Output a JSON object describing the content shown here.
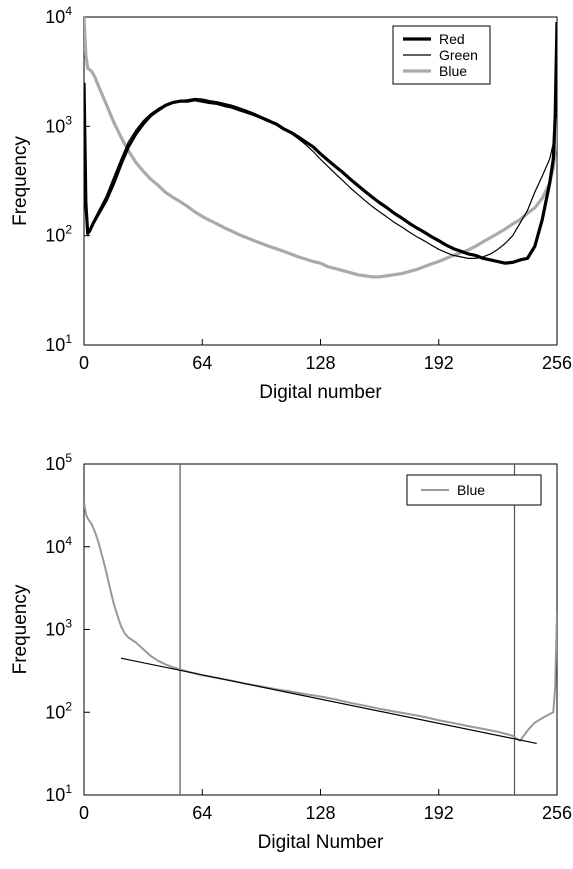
{
  "chart_data": [
    {
      "type": "line",
      "title": "",
      "xlabel": "Digital number",
      "ylabel": "Frequency",
      "xlim": [
        0,
        256
      ],
      "ylim_log10": [
        1,
        4
      ],
      "y_scale": "log",
      "x_ticks": [
        "0",
        "64",
        "128",
        "192",
        "256"
      ],
      "y_ticks": [
        {
          "base": "10",
          "exp": "1"
        },
        {
          "base": "10",
          "exp": "2"
        },
        {
          "base": "10",
          "exp": "3"
        },
        {
          "base": "10",
          "exp": "4"
        }
      ],
      "grid": false,
      "legend": "top-right",
      "series": [
        {
          "name": "Red",
          "color": "#000000",
          "style": "thick",
          "x": [
            0,
            1,
            2,
            3,
            5,
            8,
            12,
            16,
            20,
            24,
            28,
            32,
            36,
            40,
            44,
            48,
            52,
            56,
            60,
            64,
            68,
            72,
            76,
            80,
            84,
            88,
            92,
            96,
            100,
            104,
            108,
            112,
            116,
            120,
            124,
            128,
            132,
            136,
            140,
            144,
            148,
            152,
            156,
            160,
            164,
            168,
            172,
            176,
            180,
            184,
            188,
            192,
            196,
            200,
            204,
            208,
            212,
            216,
            220,
            224,
            228,
            232,
            236,
            240,
            244,
            248,
            252,
            254,
            255,
            256
          ],
          "y": [
            2500,
            200,
            105,
            110,
            130,
            160,
            210,
            300,
            450,
            650,
            850,
            1050,
            1250,
            1400,
            1550,
            1650,
            1700,
            1700,
            1750,
            1700,
            1650,
            1620,
            1550,
            1500,
            1420,
            1350,
            1280,
            1200,
            1120,
            1050,
            950,
            880,
            800,
            720,
            650,
            560,
            490,
            430,
            380,
            330,
            290,
            255,
            225,
            200,
            180,
            160,
            145,
            130,
            118,
            108,
            98,
            90,
            82,
            76,
            72,
            68,
            66,
            62,
            60,
            58,
            56,
            57,
            60,
            62,
            80,
            140,
            300,
            500,
            1200,
            9000
          ]
        },
        {
          "name": "Green",
          "color": "#000000",
          "style": "thin",
          "x": [
            0,
            1,
            2,
            3,
            5,
            8,
            12,
            16,
            20,
            24,
            28,
            32,
            36,
            40,
            44,
            48,
            52,
            56,
            60,
            64,
            68,
            72,
            76,
            80,
            84,
            88,
            92,
            96,
            100,
            104,
            108,
            112,
            116,
            120,
            124,
            128,
            132,
            136,
            140,
            144,
            148,
            152,
            156,
            160,
            164,
            168,
            172,
            176,
            180,
            184,
            188,
            192,
            196,
            200,
            204,
            208,
            212,
            216,
            220,
            224,
            228,
            232,
            236,
            240,
            244,
            248,
            252,
            254,
            255,
            256
          ],
          "y": [
            2200,
            190,
            100,
            110,
            135,
            170,
            230,
            340,
            500,
            720,
            920,
            1120,
            1300,
            1450,
            1580,
            1680,
            1720,
            1750,
            1800,
            1780,
            1720,
            1680,
            1620,
            1560,
            1480,
            1400,
            1320,
            1230,
            1150,
            1050,
            950,
            860,
            770,
            680,
            590,
            500,
            430,
            370,
            320,
            275,
            240,
            210,
            185,
            165,
            148,
            132,
            120,
            108,
            98,
            90,
            82,
            75,
            70,
            66,
            64,
            62,
            62,
            64,
            68,
            75,
            85,
            100,
            130,
            170,
            250,
            350,
            500,
            700,
            1100,
            8000
          ]
        },
        {
          "name": "Blue",
          "color": "#aaaaaa",
          "style": "thick",
          "x": [
            0,
            1,
            2,
            3,
            4,
            6,
            8,
            12,
            16,
            20,
            24,
            28,
            32,
            36,
            40,
            44,
            48,
            52,
            56,
            60,
            64,
            68,
            72,
            76,
            80,
            84,
            88,
            92,
            96,
            100,
            104,
            108,
            112,
            116,
            120,
            124,
            128,
            132,
            136,
            140,
            144,
            148,
            152,
            156,
            160,
            164,
            168,
            172,
            176,
            180,
            184,
            188,
            192,
            196,
            200,
            204,
            208,
            212,
            216,
            220,
            224,
            228,
            232,
            236,
            240,
            244,
            248,
            252,
            254,
            255,
            256
          ],
          "y": [
            10000,
            4500,
            3400,
            3300,
            3200,
            2800,
            2300,
            1600,
            1100,
            800,
            600,
            470,
            390,
            330,
            290,
            250,
            225,
            205,
            185,
            165,
            150,
            138,
            128,
            118,
            110,
            102,
            96,
            90,
            85,
            80,
            76,
            72,
            68,
            64,
            61,
            58,
            56,
            52,
            50,
            48,
            46,
            44,
            43,
            42,
            42,
            43,
            44,
            45,
            47,
            49,
            52,
            55,
            58,
            62,
            66,
            70,
            74,
            80,
            88,
            96,
            105,
            115,
            128,
            140,
            160,
            180,
            220,
            300,
            420,
            600,
            1200
          ]
        }
      ]
    },
    {
      "type": "line",
      "title": "",
      "xlabel": "Digital Number",
      "ylabel": "Frequency",
      "xlim": [
        0,
        256
      ],
      "ylim_log10": [
        1,
        5
      ],
      "y_scale": "log",
      "x_ticks": [
        "0",
        "64",
        "128",
        "192",
        "256"
      ],
      "y_ticks": [
        {
          "base": "10",
          "exp": "1"
        },
        {
          "base": "10",
          "exp": "2"
        },
        {
          "base": "10",
          "exp": "3"
        },
        {
          "base": "10",
          "exp": "4"
        },
        {
          "base": "10",
          "exp": "5"
        }
      ],
      "grid": false,
      "legend": "top-right",
      "vertical_lines_x": [
        52,
        233
      ],
      "fit_line": {
        "x": [
          20,
          245
        ],
        "y": [
          450,
          42
        ],
        "color": "#000000"
      },
      "series": [
        {
          "name": "Blue",
          "color": "#999999",
          "style": "medium",
          "x": [
            0,
            1,
            2,
            4,
            6,
            8,
            10,
            12,
            14,
            16,
            18,
            20,
            22,
            24,
            28,
            32,
            36,
            40,
            44,
            48,
            52,
            56,
            60,
            64,
            72,
            80,
            88,
            96,
            104,
            112,
            120,
            128,
            136,
            144,
            152,
            160,
            168,
            176,
            184,
            192,
            200,
            208,
            216,
            224,
            228,
            232,
            236,
            240,
            244,
            248,
            252,
            254,
            255,
            256
          ],
          "y": [
            35000,
            25000,
            22000,
            19000,
            15000,
            11000,
            7500,
            5000,
            3200,
            2100,
            1500,
            1100,
            900,
            800,
            700,
            580,
            480,
            420,
            380,
            350,
            330,
            310,
            295,
            280,
            260,
            240,
            220,
            205,
            190,
            178,
            165,
            155,
            143,
            130,
            120,
            110,
            102,
            95,
            88,
            80,
            74,
            68,
            63,
            58,
            55,
            52,
            45,
            60,
            75,
            85,
            95,
            100,
            200,
            1600
          ]
        }
      ]
    }
  ]
}
